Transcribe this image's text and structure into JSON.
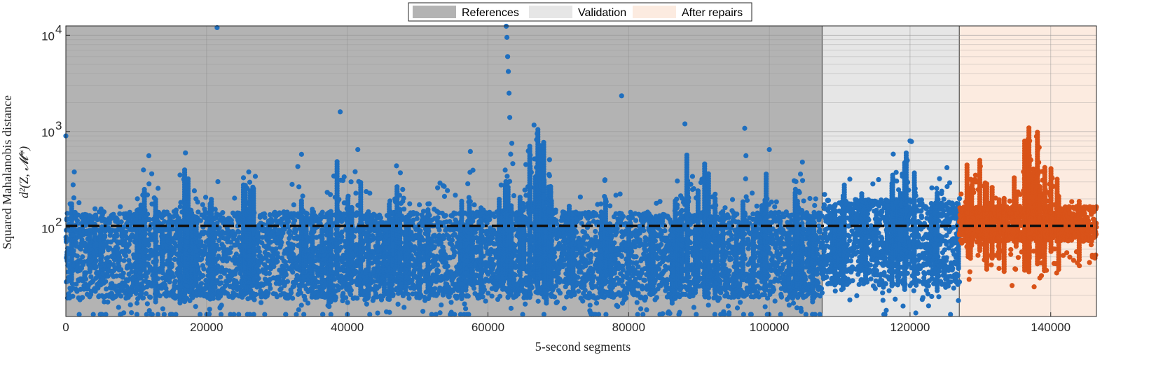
{
  "chart_data": {
    "type": "scatter",
    "xlabel": "5-second segments",
    "ylabel_line1": "Squared Mahalanobis distance",
    "ylabel_line2": "d²(Z, 𝓜*)",
    "x_range": [
      0,
      146500
    ],
    "y_range": [
      12,
      12500
    ],
    "y_scale": "log",
    "x_ticks": [
      0,
      20000,
      40000,
      60000,
      80000,
      100000,
      120000,
      140000
    ],
    "x_tick_labels": [
      "0",
      "20000",
      "40000",
      "60000",
      "80000",
      "100000",
      "120000",
      "140000"
    ],
    "y_ticks": [
      100,
      1000,
      10000
    ],
    "y_tick_labels": [
      {
        "base": "10",
        "exp": "2"
      },
      {
        "base": "10",
        "exp": "3"
      },
      {
        "base": "10",
        "exp": "4"
      }
    ],
    "grid": true,
    "threshold": 105,
    "legend_position": "top-center",
    "legend": [
      "References",
      "Validation",
      "After repairs"
    ],
    "regions": [
      {
        "name": "References",
        "x_start": 0,
        "x_end": 107500,
        "color": "#b3b3b3"
      },
      {
        "name": "Validation",
        "x_start": 107500,
        "x_end": 127000,
        "color": "#e6e6e6"
      },
      {
        "name": "After repairs",
        "x_start": 127000,
        "x_end": 146500,
        "color": "#fcebe0"
      }
    ],
    "series": [
      {
        "segment_start": 0,
        "segment_end": 127000,
        "color": "#1f6fbf"
      },
      {
        "segment_start": 127000,
        "segment_end": 146500,
        "color": "#d95319"
      }
    ],
    "outliers": [
      {
        "x": 0,
        "y": 900
      },
      {
        "x": 1200,
        "y": 380
      },
      {
        "x": 11800,
        "y": 560
      },
      {
        "x": 17000,
        "y": 600
      },
      {
        "x": 21500,
        "y": 12000
      },
      {
        "x": 26000,
        "y": 380
      },
      {
        "x": 33500,
        "y": 580
      },
      {
        "x": 39000,
        "y": 1600
      },
      {
        "x": 41500,
        "y": 650
      },
      {
        "x": 47000,
        "y": 440
      },
      {
        "x": 57500,
        "y": 620
      },
      {
        "x": 62600,
        "y": 12400
      },
      {
        "x": 62700,
        "y": 9500
      },
      {
        "x": 62800,
        "y": 6000
      },
      {
        "x": 62900,
        "y": 4200
      },
      {
        "x": 63000,
        "y": 2500
      },
      {
        "x": 63100,
        "y": 1400
      },
      {
        "x": 67000,
        "y": 950
      },
      {
        "x": 79000,
        "y": 2350
      },
      {
        "x": 88000,
        "y": 1200
      },
      {
        "x": 96500,
        "y": 1080
      },
      {
        "x": 100000,
        "y": 650
      },
      {
        "x": 120000,
        "y": 800
      },
      {
        "x": 137000,
        "y": 800
      }
    ]
  }
}
